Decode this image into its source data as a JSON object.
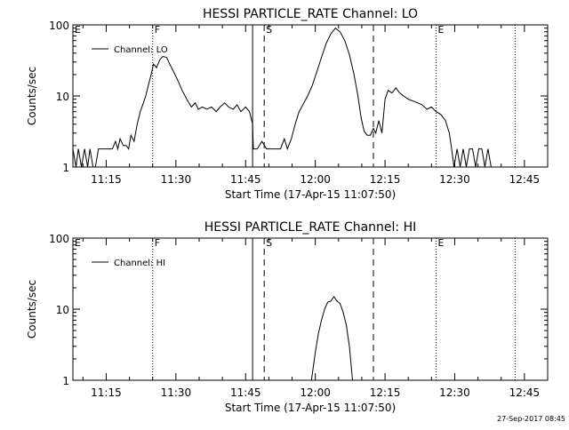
{
  "footer": {
    "timestamp": "27-Sep-2017 08:45"
  },
  "chart_data": [
    {
      "type": "line",
      "title": "HESSI PARTICLE_RATE Channel: LO",
      "xlabel": "Start Time (17-Apr-15 11:07:50)",
      "ylabel": "Counts/sec",
      "y_scale": "log",
      "ylim": [
        1,
        100
      ],
      "y_ticks": [
        "1",
        "10",
        "100"
      ],
      "x_ticks": [
        "11:15",
        "11:30",
        "11:45",
        "12:00",
        "12:15",
        "12:30",
        "12:45"
      ],
      "xlim": [
        "11:07:50",
        "12:50:00"
      ],
      "legend": {
        "label": "Channel: LO",
        "placement": "top-left"
      },
      "markers": [
        {
          "label": "E",
          "time": "11:07:50",
          "style": "none"
        },
        {
          "label": "F",
          "time": "11:25:00",
          "style": "dotted"
        },
        {
          "label": "",
          "time": "11:46:30",
          "style": "solid"
        },
        {
          "label": "S",
          "time": "11:49:00",
          "style": "dashed"
        },
        {
          "label": "",
          "time": "12:12:30",
          "style": "dashed"
        },
        {
          "label": "E",
          "time": "12:26:00",
          "style": "dotted"
        },
        {
          "label": "",
          "time": "12:43:00",
          "style": "dotted"
        }
      ],
      "series": [
        {
          "name": "Channel: LO",
          "points": [
            [
              "11:07:50",
              1.8
            ],
            [
              "11:08:30",
              1
            ],
            [
              "11:09:00",
              1.8
            ],
            [
              "11:09:40",
              1
            ],
            [
              "11:10:20",
              1.8
            ],
            [
              "11:11:00",
              1
            ],
            [
              "11:11:30",
              1.8
            ],
            [
              "11:12:10",
              1
            ],
            [
              "11:12:40",
              1
            ],
            [
              "11:13:20",
              1.8
            ],
            [
              "11:14:20",
              1.8
            ],
            [
              "11:15:20",
              1.8
            ],
            [
              "11:16:20",
              1.8
            ],
            [
              "11:17:00",
              2.3
            ],
            [
              "11:17:30",
              1.8
            ],
            [
              "11:18:00",
              2.5
            ],
            [
              "11:18:40",
              2
            ],
            [
              "11:19:20",
              2
            ],
            [
              "11:19:50",
              1.8
            ],
            [
              "11:20:20",
              2.8
            ],
            [
              "11:21:00",
              2.3
            ],
            [
              "11:21:40",
              4
            ],
            [
              "11:22:20",
              6
            ],
            [
              "11:23:00",
              8
            ],
            [
              "11:23:30",
              10
            ],
            [
              "11:24:10",
              15
            ],
            [
              "11:24:40",
              20
            ],
            [
              "11:25:10",
              28
            ],
            [
              "11:25:50",
              25
            ],
            [
              "11:26:30",
              32
            ],
            [
              "11:27:10",
              36
            ],
            [
              "11:28:00",
              35
            ],
            [
              "11:28:40",
              28
            ],
            [
              "11:29:30",
              22
            ],
            [
              "11:30:20",
              17
            ],
            [
              "11:31:20",
              12
            ],
            [
              "11:32:20",
              9
            ],
            [
              "11:33:20",
              7
            ],
            [
              "11:34:10",
              8
            ],
            [
              "11:34:50",
              6.5
            ],
            [
              "11:35:40",
              7
            ],
            [
              "11:36:40",
              6.5
            ],
            [
              "11:37:40",
              7
            ],
            [
              "11:38:40",
              6
            ],
            [
              "11:39:30",
              7
            ],
            [
              "11:40:30",
              8
            ],
            [
              "11:41:20",
              7
            ],
            [
              "11:42:20",
              6.5
            ],
            [
              "11:43:10",
              7.5
            ],
            [
              "11:44:00",
              6
            ],
            [
              "11:45:00",
              7
            ],
            [
              "11:45:50",
              6
            ],
            [
              "11:46:30",
              4
            ],
            [
              "11:46:40",
              1.8
            ],
            [
              "11:47:30",
              1.8
            ],
            [
              "11:48:30",
              2.3
            ],
            [
              "11:49:30",
              1.8
            ],
            [
              "11:50:30",
              1.8
            ],
            [
              "11:51:30",
              1.8
            ],
            [
              "11:52:30",
              1.8
            ],
            [
              "11:53:20",
              2.5
            ],
            [
              "11:54:00",
              1.8
            ],
            [
              "11:54:50",
              2.5
            ],
            [
              "11:55:40",
              4
            ],
            [
              "11:56:30",
              6
            ],
            [
              "11:57:20",
              7.5
            ],
            [
              "11:58:20",
              10
            ],
            [
              "11:59:20",
              14
            ],
            [
              "12:00:20",
              22
            ],
            [
              "12:01:20",
              35
            ],
            [
              "12:02:20",
              55
            ],
            [
              "12:03:20",
              75
            ],
            [
              "12:04:20",
              90
            ],
            [
              "12:05:20",
              80
            ],
            [
              "12:06:20",
              60
            ],
            [
              "12:07:20",
              38
            ],
            [
              "12:08:20",
              20
            ],
            [
              "12:09:10",
              10
            ],
            [
              "12:09:50",
              5
            ],
            [
              "12:10:30",
              3.2
            ],
            [
              "12:11:10",
              2.8
            ],
            [
              "12:11:50",
              2.8
            ],
            [
              "12:12:30",
              3.5
            ],
            [
              "12:13:00",
              3
            ],
            [
              "12:13:40",
              4.5
            ],
            [
              "12:14:20",
              3
            ],
            [
              "12:15:00",
              9
            ],
            [
              "12:15:40",
              12
            ],
            [
              "12:16:30",
              11
            ],
            [
              "12:17:20",
              13
            ],
            [
              "12:18:10",
              11
            ],
            [
              "12:19:00",
              10
            ],
            [
              "12:20:00",
              9
            ],
            [
              "12:21:00",
              8.5
            ],
            [
              "12:22:00",
              8
            ],
            [
              "12:23:00",
              7.5
            ],
            [
              "12:24:00",
              6.5
            ],
            [
              "12:25:00",
              7
            ],
            [
              "12:26:00",
              6
            ],
            [
              "12:27:00",
              5.5
            ],
            [
              "12:28:00",
              4.5
            ],
            [
              "12:28:50",
              3
            ],
            [
              "12:29:20",
              1.8
            ],
            [
              "12:29:50",
              1
            ],
            [
              "12:30:30",
              1.8
            ],
            [
              "12:31:10",
              1
            ],
            [
              "12:31:50",
              1.8
            ],
            [
              "12:32:30",
              1
            ],
            [
              "12:33:10",
              1.8
            ],
            [
              "12:33:50",
              1.8
            ],
            [
              "12:34:30",
              1
            ],
            [
              "12:35:10",
              1.8
            ],
            [
              "12:35:50",
              1.8
            ],
            [
              "12:36:30",
              1
            ],
            [
              "12:37:10",
              1.8
            ],
            [
              "12:37:50",
              1
            ]
          ]
        }
      ]
    },
    {
      "type": "line",
      "title": "HESSI PARTICLE_RATE Channel: HI",
      "xlabel": "Start Time (17-Apr-15 11:07:50)",
      "ylabel": "Counts/sec",
      "y_scale": "log",
      "ylim": [
        1,
        100
      ],
      "y_ticks": [
        "1",
        "10",
        "100"
      ],
      "x_ticks": [
        "11:15",
        "11:30",
        "11:45",
        "12:00",
        "12:15",
        "12:30",
        "12:45"
      ],
      "xlim": [
        "11:07:50",
        "12:50:00"
      ],
      "legend": {
        "label": "Channel: HI",
        "placement": "top-left"
      },
      "markers": [
        {
          "label": "E",
          "time": "11:07:50",
          "style": "none"
        },
        {
          "label": "F",
          "time": "11:25:00",
          "style": "dotted"
        },
        {
          "label": "",
          "time": "11:46:30",
          "style": "solid"
        },
        {
          "label": "S",
          "time": "11:49:00",
          "style": "dashed"
        },
        {
          "label": "",
          "time": "12:12:30",
          "style": "dashed"
        },
        {
          "label": "E",
          "time": "12:26:00",
          "style": "dotted"
        },
        {
          "label": "",
          "time": "12:43:00",
          "style": "dotted"
        }
      ],
      "series": [
        {
          "name": "Channel: HI",
          "points": [
            [
              "11:59:10",
              1
            ],
            [
              "12:00:00",
              2.5
            ],
            [
              "12:00:40",
              4.5
            ],
            [
              "12:01:20",
              7
            ],
            [
              "12:02:00",
              10
            ],
            [
              "12:02:40",
              12.5
            ],
            [
              "12:03:20",
              13
            ],
            [
              "12:04:00",
              15
            ],
            [
              "12:04:40",
              13
            ],
            [
              "12:05:20",
              12
            ],
            [
              "12:06:00",
              9
            ],
            [
              "12:06:40",
              6
            ],
            [
              "12:07:20",
              3
            ],
            [
              "12:08:00",
              1
            ]
          ]
        }
      ]
    }
  ]
}
